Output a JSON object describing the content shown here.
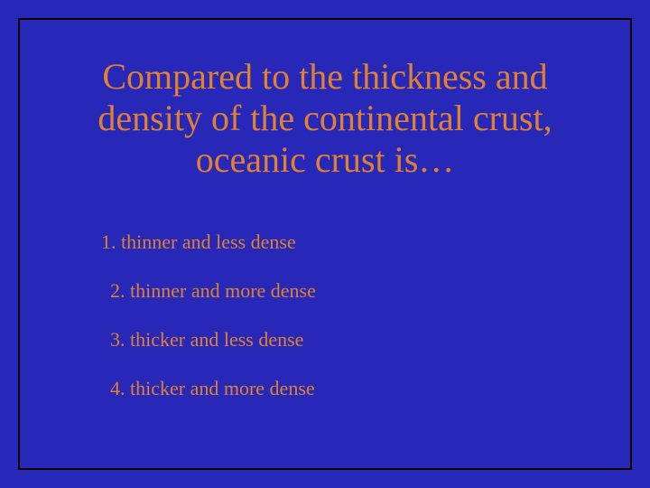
{
  "slide": {
    "background_color": "#2828b8",
    "border_color": "#000000",
    "border_width": 2,
    "text_color": "#e08030",
    "font_family": "Times New Roman",
    "question": "Compared to the thickness and density of the continental crust, oceanic crust is…",
    "question_fontsize": 40,
    "answer_fontsize": 22,
    "answers": [
      {
        "num": "1.",
        "text": "thinner and less dense"
      },
      {
        "num": "2.",
        "text": "thinner and more dense"
      },
      {
        "num": "3.",
        "text": "thicker and less dense"
      },
      {
        "num": "4.",
        "text": "thicker and more dense"
      }
    ]
  }
}
